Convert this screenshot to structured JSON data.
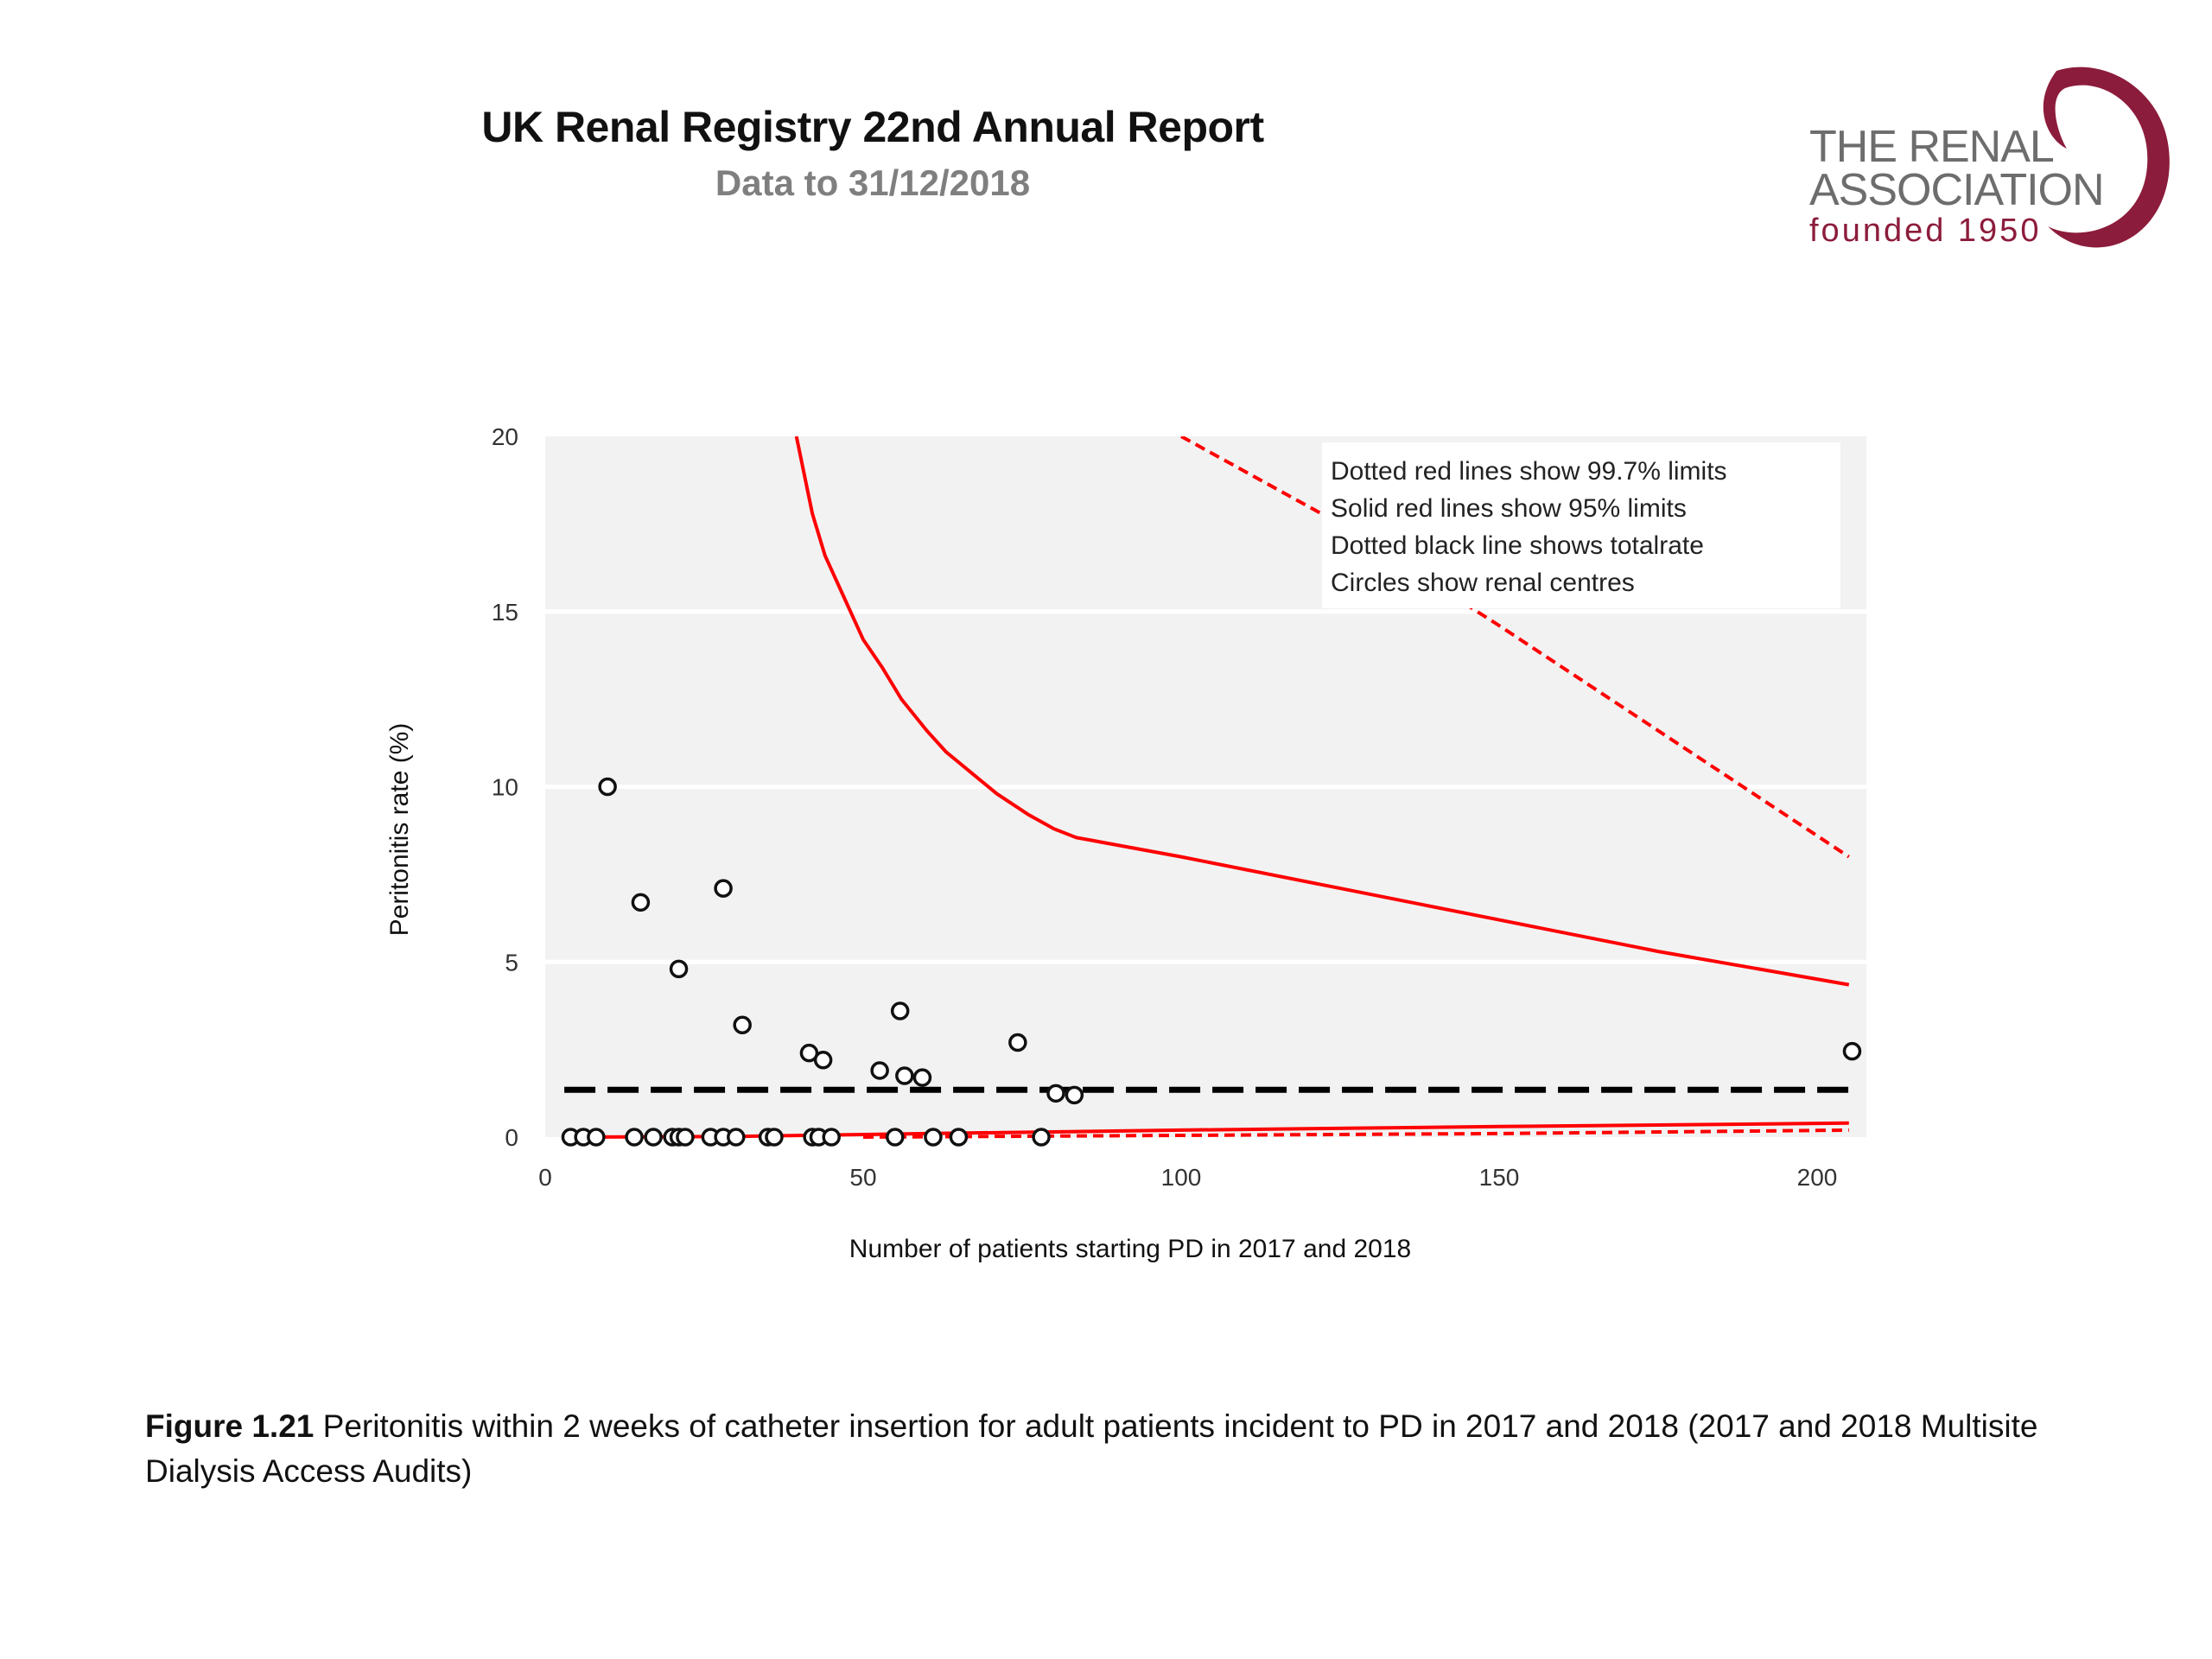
{
  "header": {
    "title": "UK Renal Registry 22nd Annual Report",
    "subtitle": "Data to 31/12/2018"
  },
  "logo": {
    "line1": "THE RENAL",
    "line2": "ASSOCIATION",
    "line3": "founded 1950",
    "icon": "kidney-swirl-icon",
    "brand_color": "#8c1c3b",
    "text_color": "#6d6d6d"
  },
  "caption": {
    "label": "Figure 1.21",
    "text": " Peritonitis within 2 weeks of catheter insertion for adult patients incident to PD in 2017 and 2018 (2017 and 2018 Multisite Dialysis Access Audits)"
  },
  "chart_data": {
    "type": "scatter",
    "title": "",
    "xlabel": "Number of patients starting PD in 2017 and 2018",
    "ylabel": "Peritonitis rate (%)",
    "xlim": [
      0,
      210
    ],
    "ylim": [
      0,
      20
    ],
    "xticks": [
      0,
      50,
      100,
      150,
      200
    ],
    "yticks": [
      0,
      5,
      10,
      15,
      20
    ],
    "grid": "horizontal",
    "background": "#f2f2f2",
    "legend": {
      "placement": "top-right",
      "lines": [
        "Dotted red lines show 99.7% limits",
        "Solid red lines show 95% limits",
        "Dotted black line shows totalrate",
        "Circles show renal centres"
      ]
    },
    "total_rate": 1.35,
    "limit_color": "#ff0000",
    "centres": {
      "name": "Renal centres",
      "x": [
        9.8,
        15,
        28,
        21,
        31,
        41.5,
        43.7,
        55.8,
        52.6,
        56.5,
        59.3,
        74.3,
        80.3,
        83.2,
        205.5,
        4,
        6,
        8,
        14,
        17,
        20,
        21,
        22,
        26,
        28,
        30,
        35,
        36,
        42,
        43,
        45,
        55,
        61,
        65,
        78
      ],
      "y": [
        10.0,
        6.7,
        7.1,
        4.8,
        3.2,
        2.4,
        2.2,
        3.6,
        1.9,
        1.75,
        1.7,
        2.7,
        1.25,
        1.2,
        2.45,
        0,
        0,
        0,
        0,
        0,
        0,
        0,
        0,
        0,
        0,
        0,
        0,
        0,
        0,
        0,
        0,
        0,
        0,
        0,
        0
      ]
    },
    "series": [
      {
        "name": "95% upper limit",
        "style": "solid",
        "x": [
          39.5,
          42,
          44,
          47,
          50,
          53,
          56,
          60,
          63,
          67,
          71,
          76,
          80,
          83.5,
          100,
          125,
          150,
          175,
          205
        ],
        "y": [
          20,
          17.8,
          16.6,
          15.4,
          14.2,
          13.4,
          12.5,
          11.6,
          11.0,
          10.4,
          9.8,
          9.2,
          8.8,
          8.55,
          8.0,
          7.1,
          6.2,
          5.3,
          4.35
        ]
      },
      {
        "name": "99.7% upper limit",
        "style": "dotted",
        "x": [
          100,
          125,
          150,
          175,
          205
        ],
        "y": [
          20,
          17.5,
          14.6,
          11.6,
          8.0
        ]
      },
      {
        "name": "95% lower limit",
        "style": "solid",
        "x": [
          4,
          30,
          60,
          100,
          150,
          205
        ],
        "y": [
          0,
          0.02,
          0.1,
          0.2,
          0.3,
          0.4
        ]
      },
      {
        "name": "99.7% lower limit",
        "style": "dotted",
        "x": [
          50,
          100,
          150,
          205
        ],
        "y": [
          0,
          0.05,
          0.1,
          0.2
        ]
      }
    ]
  }
}
